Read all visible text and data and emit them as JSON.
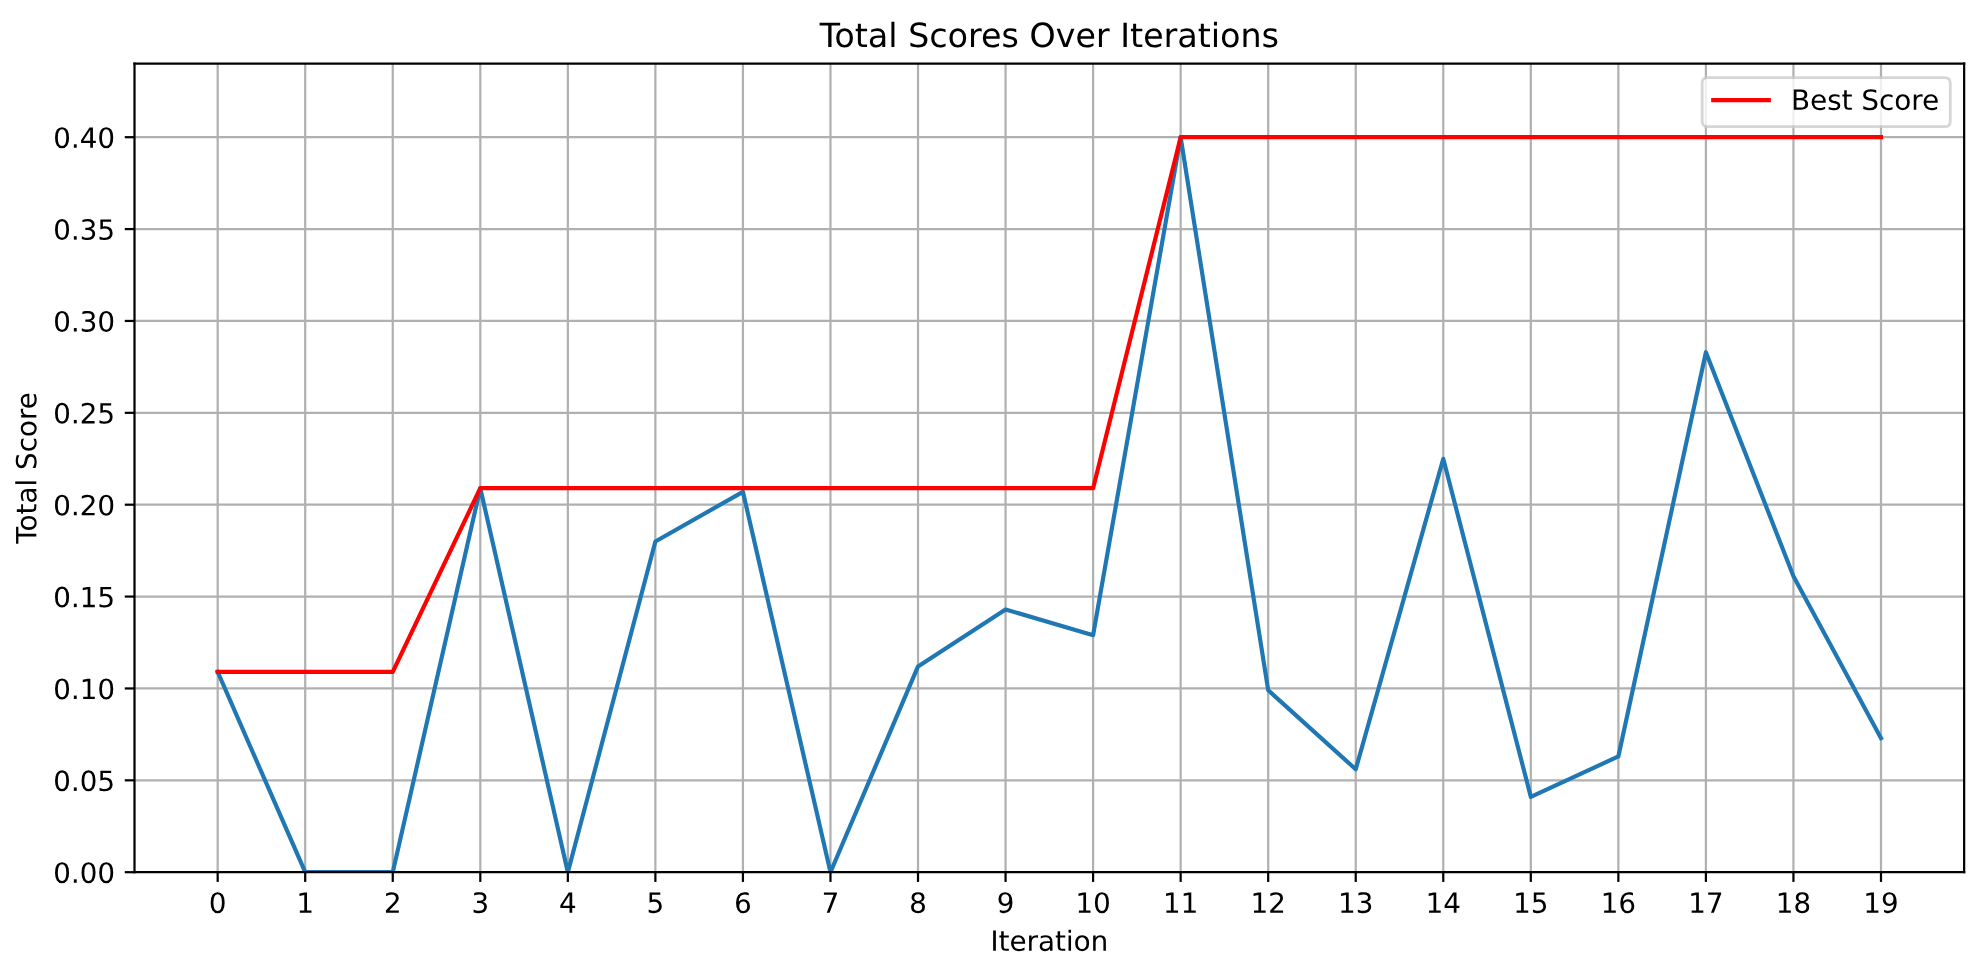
{
  "chart_data": {
    "type": "line",
    "title": "Total Scores Over Iterations",
    "xlabel": "Iteration",
    "ylabel": "Total Score",
    "x": [
      0,
      1,
      2,
      3,
      4,
      5,
      6,
      7,
      8,
      9,
      10,
      11,
      12,
      13,
      14,
      15,
      16,
      17,
      18,
      19
    ],
    "series": [
      {
        "color": "#1f77b4",
        "values": [
          0.109,
          0,
          0,
          0.209,
          0,
          0.18,
          0.207,
          0,
          0.112,
          0.143,
          0.129,
          0.4,
          0.099,
          0.056,
          0.225,
          0.041,
          0.063,
          0.283,
          0.161,
          0.073
        ]
      },
      {
        "name": "Best Score",
        "color": "#ff0000",
        "values": [
          0.109,
          0.109,
          0.109,
          0.209,
          0.209,
          0.209,
          0.209,
          0.209,
          0.209,
          0.209,
          0.209,
          0.4,
          0.4,
          0.4,
          0.4,
          0.4,
          0.4,
          0.4,
          0.4,
          0.4
        ]
      }
    ],
    "xlim": [
      -0.95,
      19.95
    ],
    "xticks": [
      0,
      1,
      2,
      3,
      4,
      5,
      6,
      7,
      8,
      9,
      10,
      11,
      12,
      13,
      14,
      15,
      16,
      17,
      18,
      19
    ],
    "ylim": [
      0,
      0.44
    ],
    "yticks": [
      {
        "value": 0,
        "label": "0.00"
      },
      {
        "value": 0.05,
        "label": "0.05"
      },
      {
        "value": 0.1,
        "label": "0.10"
      },
      {
        "value": 0.15,
        "label": "0.15"
      },
      {
        "value": 0.2,
        "label": "0.20"
      },
      {
        "value": 0.25,
        "label": "0.25"
      },
      {
        "value": 0.3,
        "label": "0.30"
      },
      {
        "value": 0.35,
        "label": "0.35"
      },
      {
        "value": 0.4,
        "label": "0.40"
      }
    ],
    "grid": true,
    "legend": "top right"
  }
}
